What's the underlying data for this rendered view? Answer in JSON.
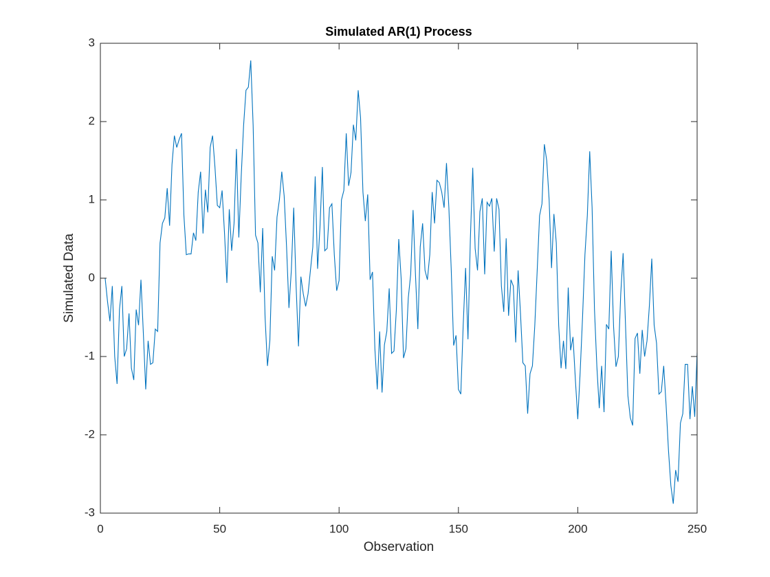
{
  "chart_data": {
    "type": "line",
    "title": "Simulated AR(1) Process",
    "x_label": "Observation",
    "y_label": "Simulated Data",
    "x": [
      1,
      2,
      3,
      4,
      5,
      6,
      7,
      8,
      9,
      10,
      11,
      12,
      13,
      14,
      15,
      16,
      17,
      18,
      19,
      20,
      21,
      22,
      23,
      24,
      25,
      26,
      27,
      28,
      29,
      30,
      31,
      32,
      33,
      34,
      35,
      36,
      37,
      38,
      39,
      40,
      41,
      42,
      43,
      44,
      45,
      46,
      47,
      48,
      49,
      50,
      51,
      52,
      53,
      54,
      55,
      56,
      57,
      58,
      59,
      60,
      61,
      62,
      63,
      64,
      65,
      66,
      67,
      68,
      69,
      70,
      71,
      72,
      73,
      74,
      75,
      76,
      77,
      78,
      79,
      80,
      81,
      82,
      83,
      84,
      85,
      86,
      87,
      88,
      89,
      90,
      91,
      92,
      93,
      94,
      95,
      96,
      97,
      98,
      99,
      100,
      101,
      102,
      103,
      104,
      105,
      106,
      107,
      108,
      109,
      110,
      111,
      112,
      113,
      114,
      115,
      116,
      117,
      118,
      119,
      120,
      121,
      122,
      123,
      124,
      125,
      126,
      127,
      128,
      129,
      130,
      131,
      132,
      133,
      134,
      135,
      136,
      137,
      138,
      139,
      140,
      141,
      142,
      143,
      144,
      145,
      146,
      147,
      148,
      149,
      150,
      151,
      152,
      153,
      154,
      155,
      156,
      157,
      158,
      159,
      160,
      161,
      162,
      163,
      164,
      165,
      166,
      167,
      168,
      169,
      170,
      171,
      172,
      173,
      174,
      175,
      176,
      177,
      178,
      179,
      180,
      181,
      182,
      183,
      184,
      185,
      186,
      187,
      188,
      189,
      190,
      191,
      192,
      193,
      194,
      195,
      196,
      197,
      198,
      199,
      200,
      201,
      202,
      203,
      204,
      205,
      206,
      207,
      208,
      209,
      210,
      211,
      212,
      213,
      214,
      215,
      216,
      217,
      218,
      219,
      220,
      221,
      222,
      223,
      224,
      225,
      226,
      227,
      228,
      229,
      230,
      231,
      232,
      233,
      234,
      235,
      236,
      237,
      238,
      239,
      240,
      241,
      242,
      243,
      244,
      245,
      246,
      247,
      248,
      249,
      250
    ],
    "series": [
      {
        "name": "AR(1)",
        "color": "#0072bd",
        "values": [
          0,
          0,
          -0.3,
          -0.55,
          -0.1,
          -1.0,
          -1.35,
          -0.4,
          -0.1,
          -1.0,
          -0.9,
          -0.45,
          -1.15,
          -1.3,
          -0.4,
          -0.6,
          -0.02,
          -0.7,
          -1.42,
          -0.8,
          -1.1,
          -1.08,
          -0.65,
          -0.68,
          0.45,
          0.7,
          0.77,
          1.15,
          0.67,
          1.45,
          1.82,
          1.67,
          1.77,
          1.85,
          0.8,
          0.3,
          0.31,
          0.31,
          0.58,
          0.48,
          1.1,
          1.36,
          0.57,
          1.13,
          0.84,
          1.67,
          1.82,
          1.42,
          0.93,
          0.9,
          1.12,
          0.58,
          -0.06,
          0.88,
          0.35,
          0.7,
          1.65,
          0.52,
          1.3,
          1.95,
          2.4,
          2.44,
          2.78,
          1.95,
          0.55,
          0.45,
          -0.18,
          0.64,
          -0.5,
          -1.12,
          -0.8,
          0.28,
          0.1,
          0.78,
          1.0,
          1.36,
          1.05,
          0.4,
          -0.38,
          0.1,
          0.9,
          -0.1,
          -0.87,
          0.02,
          -0.2,
          -0.36,
          -0.2,
          0.1,
          0.4,
          1.3,
          0.12,
          0.65,
          1.42,
          0.35,
          0.38,
          0.9,
          0.95,
          0.3,
          -0.16,
          -0.03,
          1.0,
          1.12,
          1.85,
          1.18,
          1.35,
          1.96,
          1.76,
          2.4,
          2.05,
          1.1,
          0.73,
          1.07,
          -0.02,
          0.08,
          -0.9,
          -1.42,
          -0.68,
          -1.46,
          -0.85,
          -0.68,
          -0.13,
          -0.96,
          -0.93,
          -0.4,
          0.5,
          0.0,
          -1.02,
          -0.9,
          -0.25,
          0.05,
          0.87,
          0.05,
          -0.65,
          0.4,
          0.7,
          0.1,
          -0.02,
          0.3,
          1.1,
          0.7,
          1.25,
          1.22,
          1.1,
          0.9,
          1.47,
          0.9,
          0.1,
          -0.86,
          -0.73,
          -1.42,
          -1.48,
          -0.6,
          0.13,
          -0.78,
          0.5,
          1.41,
          0.38,
          0.1,
          0.85,
          1.02,
          0.05,
          0.97,
          0.92,
          1.02,
          0.34,
          1.02,
          0.88,
          -0.1,
          -0.43,
          0.51,
          -0.48,
          -0.02,
          -0.1,
          -0.82,
          0.1,
          -0.45,
          -1.08,
          -1.12,
          -1.73,
          -1.22,
          -1.12,
          -0.6,
          0.1,
          0.8,
          0.95,
          1.71,
          1.5,
          1.0,
          0.13,
          0.82,
          0.45,
          -0.6,
          -1.15,
          -0.8,
          -1.16,
          -0.12,
          -0.92,
          -0.75,
          -1.3,
          -1.8,
          -1.2,
          -0.5,
          0.3,
          0.8,
          1.62,
          0.9,
          -0.4,
          -1.13,
          -1.66,
          -1.12,
          -1.71,
          -0.59,
          -0.65,
          0.35,
          -0.62,
          -1.13,
          -1.0,
          -0.2,
          0.32,
          -0.6,
          -1.5,
          -1.78,
          -1.88,
          -0.77,
          -0.7,
          -1.22,
          -0.66,
          -1.0,
          -0.8,
          -0.35,
          0.25,
          -0.6,
          -0.83,
          -1.48,
          -1.45,
          -1.12,
          -1.62,
          -2.2,
          -2.65,
          -2.88,
          -2.45,
          -2.6,
          -1.85,
          -1.73,
          -1.1,
          -1.1,
          -1.8,
          -1.38,
          -1.77,
          -0.95
        ]
      }
    ],
    "xlim": [
      0,
      250
    ],
    "xticks": [
      0,
      50,
      100,
      150,
      200,
      250
    ],
    "ylim": [
      -3,
      3
    ],
    "yticks": [
      -3,
      -2,
      -1,
      0,
      1,
      2,
      3
    ]
  }
}
